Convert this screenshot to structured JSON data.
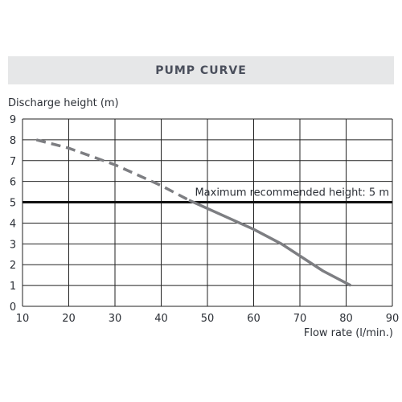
{
  "chart_data": {
    "type": "line",
    "title": "PUMP CURVE",
    "ylabel": "Discharge height (m)",
    "xlabel": "Flow rate (l/min.)",
    "xlim": [
      10,
      90
    ],
    "ylim": [
      0,
      9
    ],
    "x_ticks": [
      "10",
      "20",
      "30",
      "40",
      "50",
      "60",
      "70",
      "80",
      "90"
    ],
    "y_ticks": [
      "0",
      "1",
      "2",
      "3",
      "4",
      "5",
      "6",
      "7",
      "8",
      "9"
    ],
    "grid": true,
    "series": [
      {
        "style": "dashed",
        "x": [
          13,
          20,
          30,
          40,
          46
        ],
        "y": [
          8.0,
          7.6,
          6.8,
          5.8,
          5.1
        ]
      },
      {
        "style": "solid",
        "x": [
          46,
          50,
          60,
          66,
          75,
          81
        ],
        "y": [
          5.1,
          4.7,
          3.7,
          3.0,
          1.7,
          1.0
        ]
      }
    ],
    "reference_line": {
      "y": 5,
      "label": "Maximum recommended height: 5 m"
    },
    "colors": {
      "curve": "#7d7e82",
      "reference": "#111111",
      "grid": "#222222",
      "title_band": "#e6e7e8"
    }
  }
}
